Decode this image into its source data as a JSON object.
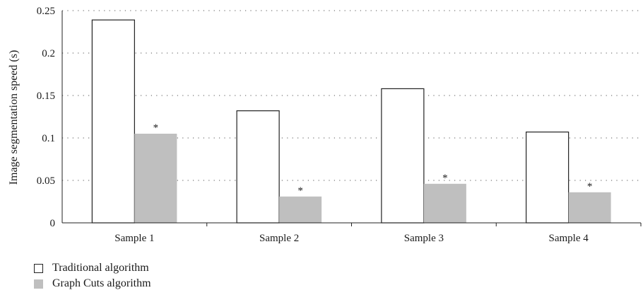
{
  "chart_data": {
    "type": "bar",
    "categories": [
      "Sample 1",
      "Sample 2",
      "Sample 3",
      "Sample 4"
    ],
    "series": [
      {
        "name": "Traditional algorithm",
        "values": [
          0.239,
          0.132,
          0.158,
          0.107
        ],
        "color": "#ffffff",
        "stroke": "#222222"
      },
      {
        "name": "Graph Cuts algorithm",
        "values": [
          0.105,
          0.031,
          0.046,
          0.036
        ],
        "color": "#bfbfbf",
        "stroke": "none"
      }
    ],
    "annotations": [
      "*",
      "*",
      "*",
      "*"
    ],
    "ylabel": "Image segmentation speed (s)",
    "xlabel": "",
    "ylim": [
      0,
      0.25
    ],
    "yticks": [
      "0",
      "0.05",
      "0.1",
      "0.15",
      "0.2",
      "0.25"
    ],
    "grid": "horizontal-dotted",
    "legend_position": "bottom-left"
  }
}
